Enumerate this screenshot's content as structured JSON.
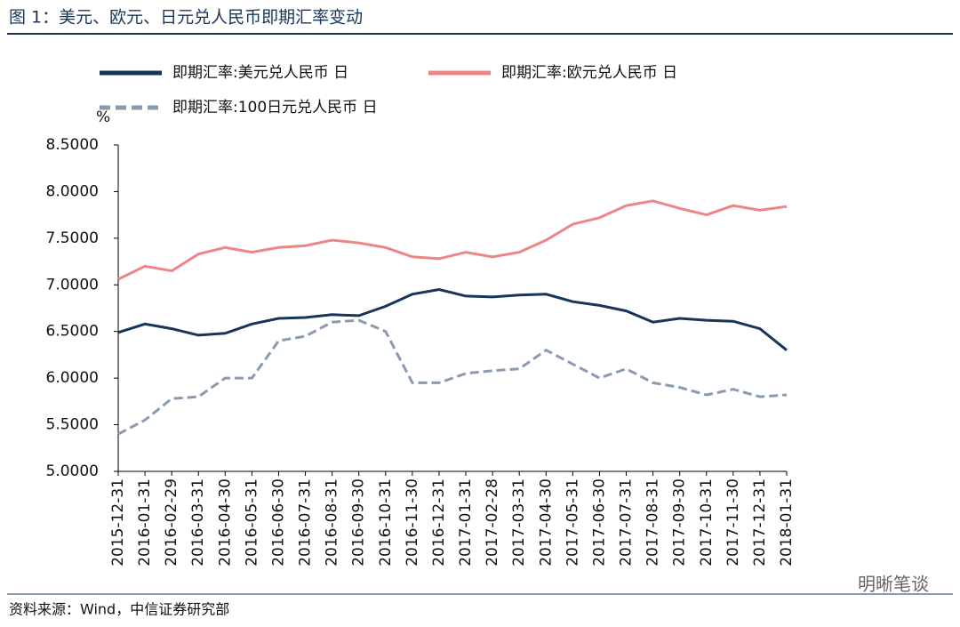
{
  "chart_data": {
    "type": "line",
    "title": "图 1：美元、欧元、日元兑人民币即期汇率变动",
    "y_unit": "%",
    "source": "资料来源：Wind，中信证券研究部",
    "watermark": "明晰笔谈",
    "categories": [
      "2015-12-31",
      "2016-01-31",
      "2016-02-29",
      "2016-03-31",
      "2016-04-30",
      "2016-05-31",
      "2016-06-30",
      "2016-07-31",
      "2016-08-31",
      "2016-09-30",
      "2016-10-31",
      "2016-11-30",
      "2016-12-31",
      "2017-01-31",
      "2017-02-28",
      "2017-03-31",
      "2017-04-30",
      "2017-05-31",
      "2017-06-30",
      "2017-07-31",
      "2017-08-31",
      "2017-09-30",
      "2017-10-31",
      "2017-11-30",
      "2017-12-31",
      "2018-01-31"
    ],
    "series": [
      {
        "name": "即期汇率:美元兑人民币 日",
        "color": "#17355a",
        "dashed": false,
        "values": [
          6.49,
          6.58,
          6.53,
          6.46,
          6.48,
          6.58,
          6.64,
          6.65,
          6.68,
          6.67,
          6.77,
          6.9,
          6.95,
          6.88,
          6.87,
          6.89,
          6.9,
          6.82,
          6.78,
          6.72,
          6.6,
          6.64,
          6.62,
          6.61,
          6.53,
          6.3
        ]
      },
      {
        "name": "即期汇率:欧元兑人民币 日",
        "color": "#ee8585",
        "dashed": false,
        "values": [
          7.06,
          7.2,
          7.15,
          7.33,
          7.4,
          7.35,
          7.4,
          7.42,
          7.48,
          7.45,
          7.4,
          7.3,
          7.28,
          7.35,
          7.3,
          7.35,
          7.48,
          7.65,
          7.72,
          7.85,
          7.9,
          7.82,
          7.75,
          7.85,
          7.8,
          7.84
        ]
      },
      {
        "name": "即期汇率:100日元兑人民币 日",
        "color": "#8a9bb0",
        "dashed": true,
        "values": [
          5.4,
          5.55,
          5.78,
          5.8,
          6.0,
          6.0,
          6.4,
          6.45,
          6.6,
          6.62,
          6.5,
          5.95,
          5.95,
          6.05,
          6.08,
          6.1,
          6.3,
          6.15,
          6.0,
          6.1,
          5.95,
          5.9,
          5.82,
          5.88,
          5.8,
          5.82
        ]
      }
    ],
    "ylim": [
      5,
      8.5
    ],
    "yticks": [
      {
        "value": 5,
        "label": "5.0000"
      },
      {
        "value": 5.5,
        "label": "5.5000"
      },
      {
        "value": 6,
        "label": "6.0000"
      },
      {
        "value": 6.5,
        "label": "6.5000"
      },
      {
        "value": 7,
        "label": "7.0000"
      },
      {
        "value": 7.5,
        "label": "7.5000"
      },
      {
        "value": 8,
        "label": "8.0000"
      },
      {
        "value": 8.5,
        "label": "8.5000"
      }
    ]
  }
}
